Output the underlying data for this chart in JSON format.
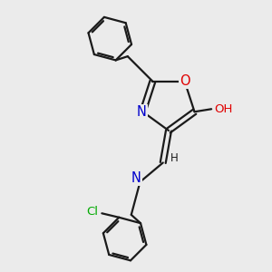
{
  "background_color": "#ebebeb",
  "line_color": "#1a1a1a",
  "line_width": 1.6,
  "atom_colors": {
    "O": "#e00000",
    "N": "#0000cc",
    "Cl": "#00aa00",
    "C": "#1a1a1a",
    "H": "#1a1a1a"
  },
  "font_size": 9.5,
  "figsize": [
    3.0,
    3.0
  ],
  "dpi": 100
}
